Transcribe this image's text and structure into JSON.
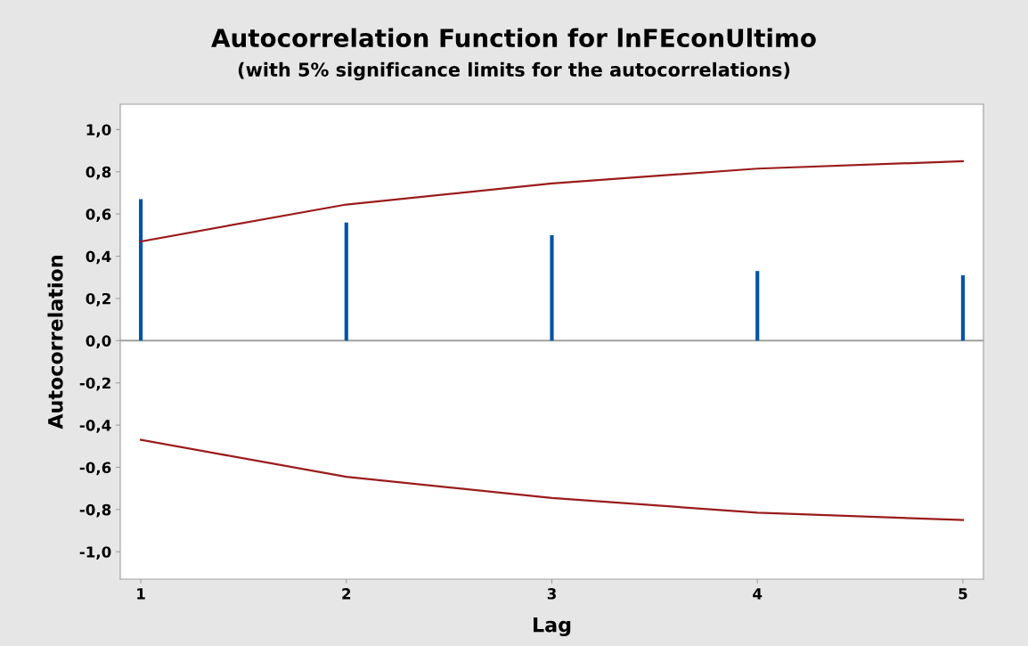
{
  "chart_data": {
    "type": "bar",
    "title": "Autocorrelation Function for lnFEconUltimo",
    "subtitle": "(with 5% significance limits for the autocorrelations)",
    "xlabel": "Lag",
    "ylabel": "Autocorrelation",
    "x": [
      1,
      2,
      3,
      4,
      5
    ],
    "series": [
      {
        "color": "#0054a6",
        "values": [
          0.67,
          0.56,
          0.5,
          0.33,
          0.31
        ]
      },
      {
        "type": "line",
        "color": "#9b1c1c",
        "values": [
          0.47,
          0.645,
          0.745,
          0.815,
          0.85
        ]
      },
      {
        "type": "line",
        "color": "#9b1c1c",
        "values": [
          -0.47,
          -0.645,
          -0.745,
          -0.815,
          -0.85
        ]
      }
    ],
    "xlim": [
      0.9,
      5.1
    ],
    "xticks": [
      1,
      2,
      3,
      4,
      5
    ],
    "ylim": [
      -1.13,
      1.12
    ],
    "yticks": [
      {
        "value": -1.0,
        "label": "-1,0"
      },
      {
        "value": -0.8,
        "label": "-0,8"
      },
      {
        "value": -0.6,
        "label": "-0,6"
      },
      {
        "value": -0.4,
        "label": "-0,4"
      },
      {
        "value": -0.2,
        "label": "-0,2"
      },
      {
        "value": 0.0,
        "label": "0,0"
      },
      {
        "value": 0.2,
        "label": "0,2"
      },
      {
        "value": 0.4,
        "label": "0,4"
      },
      {
        "value": 0.6,
        "label": "0,6"
      },
      {
        "value": 0.8,
        "label": "0,8"
      },
      {
        "value": 1.0,
        "label": "1,0"
      }
    ],
    "ref_lines": [
      {
        "axis": "y",
        "value": 0,
        "color": "#a0a0a0"
      }
    ],
    "grid": false,
    "legend": false
  }
}
